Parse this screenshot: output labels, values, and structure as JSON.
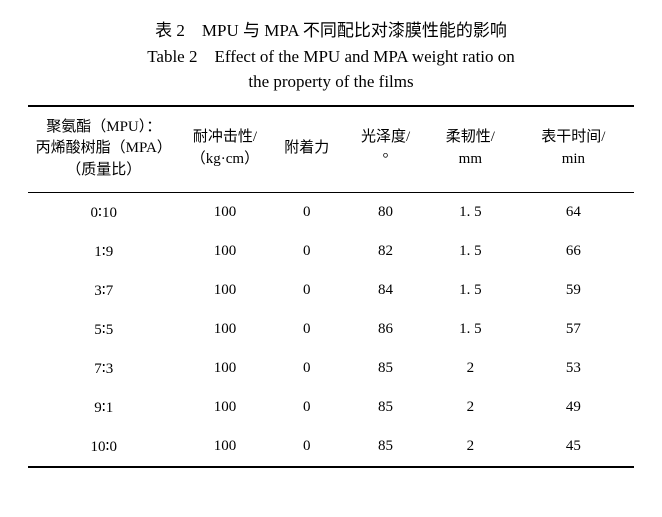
{
  "caption": {
    "line1": "表 2　MPU 与 MPA 不同配比对漆膜性能的影响",
    "line2": "Table 2　Effect of the MPU and MPA weight ratio on",
    "line3": "the property of the films"
  },
  "table": {
    "columns": [
      {
        "l1": "聚氨酯（MPU）：",
        "l2": "丙烯酸树脂（MPA）",
        "l3": "（质量比）"
      },
      {
        "l1": "耐冲击性/",
        "l2": "（kg·cm）"
      },
      {
        "l1": "附着力"
      },
      {
        "l1": "光泽度/",
        "l2": "°"
      },
      {
        "l1": "柔韧性/",
        "l2": "mm"
      },
      {
        "l1": "表干时间/",
        "l2": "min"
      }
    ],
    "rows": [
      [
        "0∶10",
        "100",
        "0",
        "80",
        "1. 5",
        "64"
      ],
      [
        "1∶9",
        "100",
        "0",
        "82",
        "1. 5",
        "66"
      ],
      [
        "3∶7",
        "100",
        "0",
        "84",
        "1. 5",
        "59"
      ],
      [
        "5∶5",
        "100",
        "0",
        "86",
        "1. 5",
        "57"
      ],
      [
        "7∶3",
        "100",
        "0",
        "85",
        "2",
        "53"
      ],
      [
        "9∶1",
        "100",
        "0",
        "85",
        "2",
        "49"
      ],
      [
        "10∶0",
        "100",
        "0",
        "85",
        "2",
        "45"
      ]
    ]
  },
  "style": {
    "background_color": "#ffffff",
    "text_color": "#000000",
    "caption_fontsize": 17,
    "header_fontsize": 15,
    "body_fontsize": 15,
    "rule_thick": 2,
    "rule_thin": 1.2
  }
}
